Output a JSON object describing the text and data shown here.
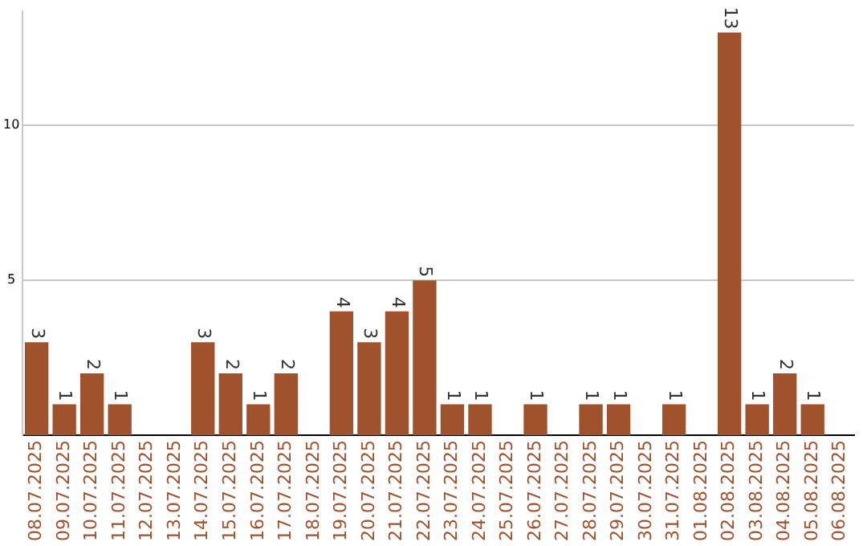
{
  "chart_data": {
    "type": "bar",
    "categories": [
      "08.07.2025",
      "09.07.2025",
      "10.07.2025",
      "11.07.2025",
      "12.07.2025",
      "13.07.2025",
      "14.07.2025",
      "15.07.2025",
      "16.07.2025",
      "17.07.2025",
      "18.07.2025",
      "19.07.2025",
      "20.07.2025",
      "21.07.2025",
      "22.07.2025",
      "23.07.2025",
      "24.07.2025",
      "25.07.2025",
      "26.07.2025",
      "27.07.2025",
      "28.07.2025",
      "29.07.2025",
      "30.07.2025",
      "31.07.2025",
      "01.08.2025",
      "02.08.2025",
      "03.08.2025",
      "04.08.2025",
      "05.08.2025",
      "06.08.2025"
    ],
    "values": [
      3,
      1,
      2,
      1,
      0,
      0,
      3,
      2,
      1,
      2,
      0,
      4,
      3,
      4,
      5,
      1,
      1,
      0,
      1,
      0,
      1,
      1,
      0,
      1,
      0,
      13,
      1,
      2,
      1,
      0
    ],
    "value_labels": [
      "3",
      "1",
      "2",
      "1",
      null,
      null,
      "3",
      "2",
      "1",
      "2",
      null,
      "4",
      "3",
      "4",
      "5",
      "1",
      "1",
      null,
      "1",
      null,
      "1",
      "1",
      null,
      "1",
      null,
      "13",
      "1",
      "2",
      "1",
      null
    ],
    "color": "#a0522d",
    "ylim": [
      0,
      13.7
    ],
    "yticks": [
      5,
      10
    ],
    "grid": "y",
    "legend": false
  }
}
